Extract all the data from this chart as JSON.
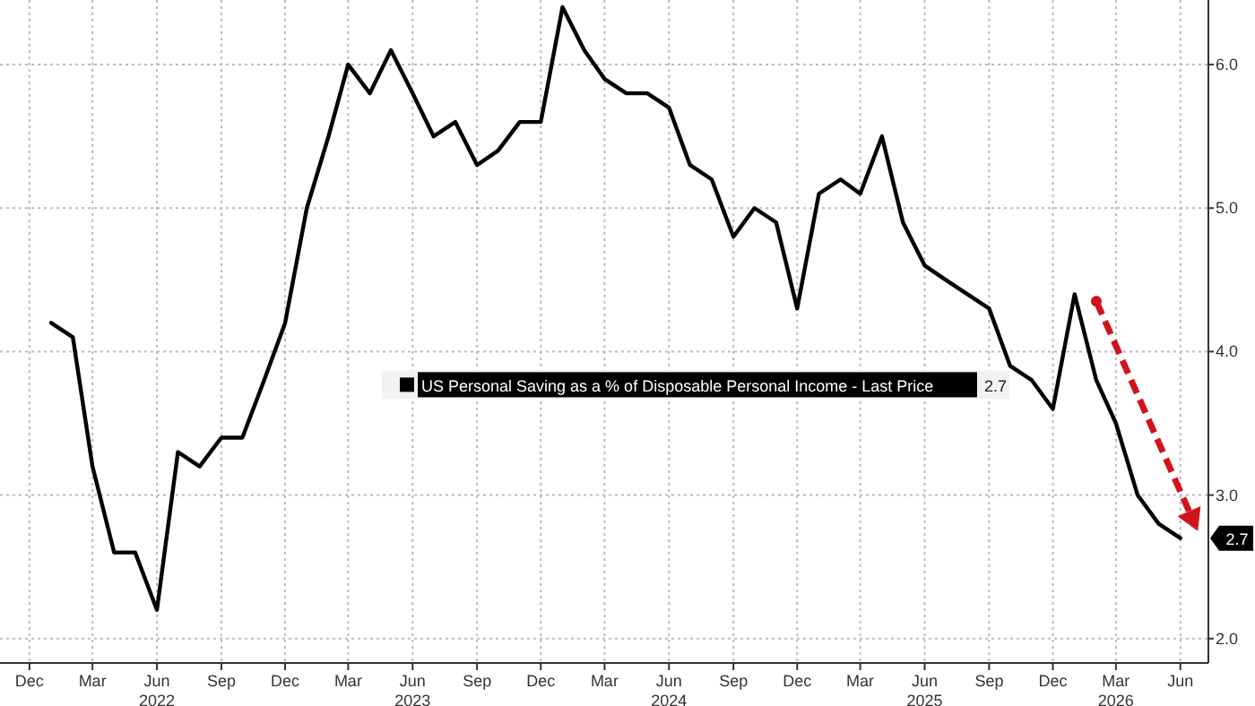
{
  "chart_data": {
    "type": "line",
    "x": [
      "2022-01",
      "2022-02",
      "2022-03",
      "2022-04",
      "2022-05",
      "2022-06",
      "2022-07",
      "2022-08",
      "2022-09",
      "2022-10",
      "2022-11",
      "2022-12",
      "2023-01",
      "2023-02",
      "2023-03",
      "2023-04",
      "2023-05",
      "2023-06",
      "2023-07",
      "2023-08",
      "2023-09",
      "2023-10",
      "2023-11",
      "2023-12",
      "2024-01",
      "2024-02",
      "2024-03",
      "2024-04",
      "2024-05",
      "2024-06",
      "2024-07",
      "2024-08",
      "2024-09",
      "2024-10",
      "2024-11",
      "2024-12",
      "2025-01",
      "2025-02",
      "2025-03",
      "2025-04",
      "2025-05",
      "2025-06",
      "2025-07",
      "2025-08",
      "2025-09",
      "2025-10",
      "2025-11",
      "2025-12",
      "2026-01",
      "2026-02",
      "2026-03",
      "2026-04",
      "2026-05",
      "2026-06"
    ],
    "series": [
      {
        "name": "US Personal Saving as a % of Disposable Personal Income - Last Price",
        "color": "#000000",
        "values": [
          4.2,
          4.1,
          3.2,
          2.6,
          2.6,
          2.2,
          3.3,
          3.2,
          3.4,
          3.4,
          3.8,
          4.2,
          5.0,
          5.5,
          6.0,
          5.8,
          6.1,
          5.8,
          5.5,
          5.6,
          5.3,
          5.4,
          5.6,
          5.6,
          6.4,
          6.1,
          5.9,
          5.8,
          5.8,
          5.7,
          5.3,
          5.2,
          4.8,
          5.0,
          4.9,
          4.3,
          5.1,
          5.2,
          5.1,
          5.5,
          4.9,
          4.6,
          4.5,
          4.4,
          4.3,
          3.9,
          3.8,
          3.6,
          4.4,
          3.8,
          3.5,
          3.0,
          2.8,
          2.7
        ]
      }
    ],
    "xlim": [
      "2021-10-20",
      "2026-07-11"
    ],
    "xticks": [
      {
        "value": "2021-12",
        "label": "Dec"
      },
      {
        "value": "2022-03",
        "label": "Mar"
      },
      {
        "value": "2022-06",
        "label": "Jun\n2022"
      },
      {
        "value": "2022-09",
        "label": "Sep"
      },
      {
        "value": "2022-12",
        "label": "Dec"
      },
      {
        "value": "2023-03",
        "label": "Mar"
      },
      {
        "value": "2023-06",
        "label": "Jun\n2023"
      },
      {
        "value": "2023-09",
        "label": "Sep"
      },
      {
        "value": "2023-12",
        "label": "Dec"
      },
      {
        "value": "2024-03",
        "label": "Mar"
      },
      {
        "value": "2024-06",
        "label": "Jun\n2024"
      },
      {
        "value": "2024-09",
        "label": "Sep"
      },
      {
        "value": "2024-12",
        "label": "Dec"
      },
      {
        "value": "2025-03",
        "label": "Mar"
      },
      {
        "value": "2025-06",
        "label": "Jun\n2025"
      },
      {
        "value": "2025-09",
        "label": "Sep"
      },
      {
        "value": "2025-12",
        "label": "Dec"
      },
      {
        "value": "2026-03",
        "label": "Mar\n2026"
      },
      {
        "value": "2026-06",
        "label": "Jun"
      }
    ],
    "ylim": [
      1.83,
      6.45
    ],
    "yticks": [
      {
        "value": 2,
        "label": "2.0"
      },
      {
        "value": 3,
        "label": "3.0"
      },
      {
        "value": 4,
        "label": "4.0"
      },
      {
        "value": 5,
        "label": "5.0"
      },
      {
        "value": 6,
        "label": "6.0"
      }
    ],
    "grid": true,
    "legend": "center",
    "marker": "none",
    "line_style": "solid",
    "annotations": [
      {
        "text": "2.7",
        "x": "2026-06",
        "y": 2.7
      },
      "2.7"
    ]
  }
}
